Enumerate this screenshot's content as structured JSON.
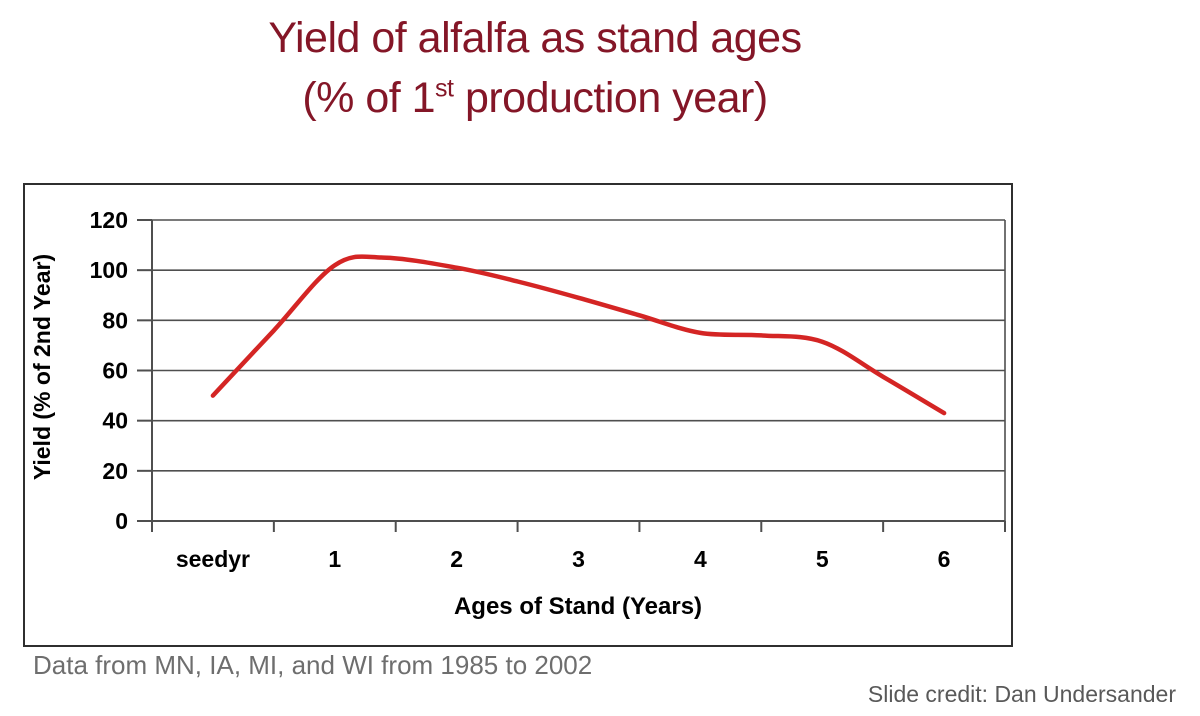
{
  "slide": {
    "title_line1": "Yield of alfalfa as stand ages",
    "title_line2_pre": "(% of 1",
    "title_line2_sup": "st",
    "title_line2_post": " production year)",
    "source_note": "Data from MN, IA, MI, and WI from 1985 to 2002",
    "credit": "Slide credit: Dan Undersander"
  },
  "colors": {
    "title": "#841627",
    "line": "#d42524",
    "grid": "#4f4f4f",
    "axis": "#4f4f4f",
    "axis_text": "#000000",
    "source_note": "#6e6e6e",
    "credit": "#595959",
    "chart_border": "#2f2f2f"
  },
  "chart_data": {
    "type": "line",
    "title": "Yield of alfalfa as stand ages (% of 1st production year)",
    "xlabel": "Ages of Stand (Years)",
    "ylabel": "Yield (% of 2nd Year)",
    "categories": [
      "seedyr",
      "1",
      "2",
      "3",
      "4",
      "5",
      "6"
    ],
    "values": [
      50,
      102,
      101,
      89,
      75,
      72,
      43
    ],
    "series": [
      {
        "name": "Yield (% of 2nd Year)",
        "values": [
          50,
          102,
          101,
          89,
          75,
          72,
          43
        ]
      }
    ],
    "ylim": [
      0,
      120
    ],
    "yticks": [
      0,
      20,
      40,
      60,
      80,
      100,
      120
    ],
    "grid": "horizontal",
    "legend": "none",
    "line_color": "#d42524",
    "peak_annotation": "curve peaks near 105 between year 1 and 2",
    "curve_points": [
      [
        0,
        50
      ],
      [
        0.5,
        76
      ],
      [
        1,
        102
      ],
      [
        1.4,
        105
      ],
      [
        2,
        101
      ],
      [
        2.5,
        95.5
      ],
      [
        3,
        89
      ],
      [
        3.5,
        82
      ],
      [
        4,
        75
      ],
      [
        4.5,
        74
      ],
      [
        5,
        71.5
      ],
      [
        5.5,
        57.5
      ],
      [
        6,
        43
      ]
    ]
  }
}
